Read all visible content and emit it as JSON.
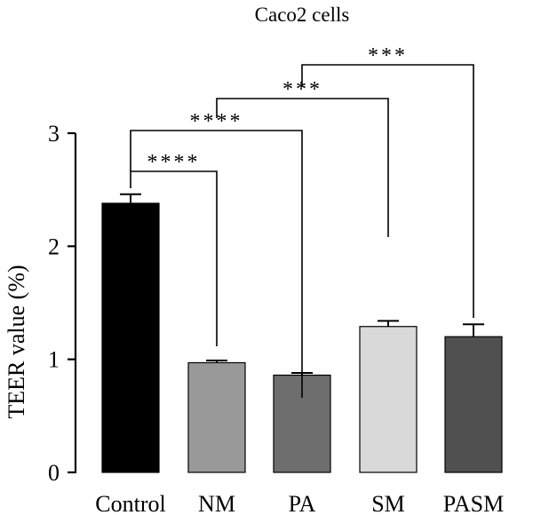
{
  "chart_data": {
    "type": "bar",
    "title": "Caco2 cells",
    "ylabel": "TEER value (%)",
    "xlabel": "",
    "ylim": [
      0,
      3
    ],
    "yticks": [
      0,
      1,
      2,
      3
    ],
    "categories": [
      "Control",
      "NM",
      "PA",
      "SM",
      "PASM"
    ],
    "values": [
      2.38,
      0.97,
      0.86,
      1.29,
      1.2
    ],
    "errors": [
      0.08,
      0.02,
      0.02,
      0.05,
      0.11
    ],
    "bar_colors": [
      "#000000",
      "#999999",
      "#6e6e6e",
      "#d9d9d9",
      "#505050"
    ],
    "grid": false,
    "significance": [
      {
        "from": "Control",
        "to": "NM",
        "label": "****"
      },
      {
        "from": "Control",
        "to": "PA",
        "label": "****"
      },
      {
        "from": "NM",
        "to": "SM",
        "label": "***"
      },
      {
        "from": "PA",
        "to": "PASM",
        "label": "***"
      }
    ]
  }
}
